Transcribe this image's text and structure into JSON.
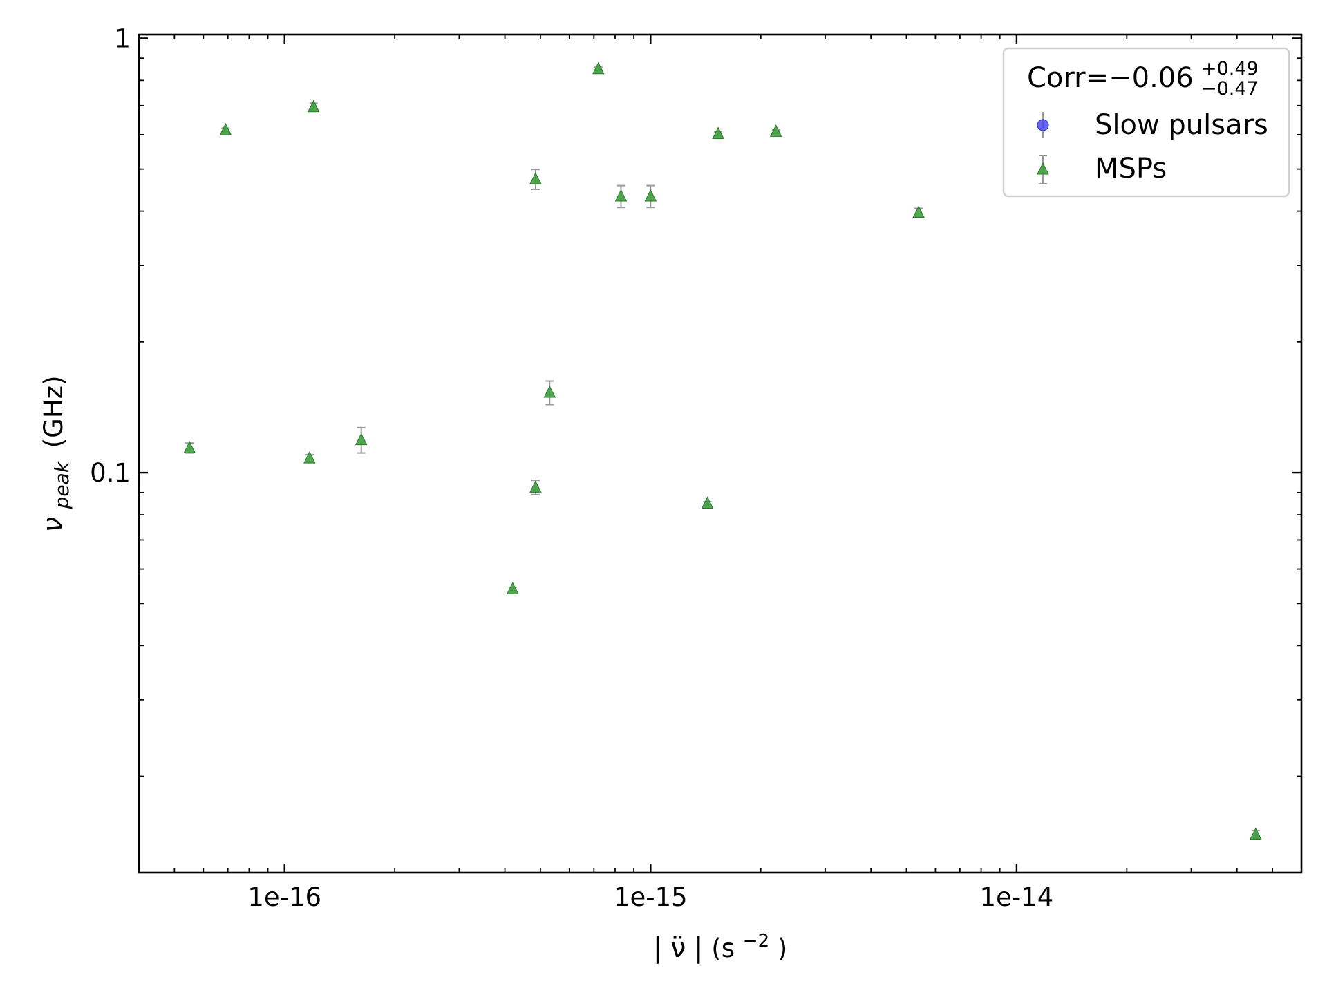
{
  "chart_data": {
    "type": "scatter",
    "title": "",
    "xlabel": {
      "abs_open": "|",
      "symbol": "ν̈",
      "abs_close": "|",
      "unit_open": "(s",
      "unit_exp": "−2",
      "unit_close": ")"
    },
    "ylabel": {
      "symbol": "ν",
      "subscript": "peak",
      "unit": "(GHz)"
    },
    "xscale": "log",
    "yscale": "log",
    "xlim": [
      4e-17,
      6e-14
    ],
    "ylim": [
      0.012,
      1.02
    ],
    "x_ticks": [
      {
        "value": 1e-16,
        "label": "1e-16"
      },
      {
        "value": 1e-15,
        "label": "1e-15"
      },
      {
        "value": 1e-14,
        "label": "1e-14"
      }
    ],
    "y_ticks": [
      {
        "value": 0.1,
        "label": "0.1"
      },
      {
        "value": 1,
        "label": "1"
      }
    ],
    "grid": false,
    "legend": {
      "position": "top-right",
      "title_prefix": "Corr=−0.06",
      "title_sup": "+0.49",
      "title_sub": "−0.47",
      "entries": [
        "Slow pulsars",
        "MSPs"
      ]
    },
    "series": [
      {
        "name": "Slow pulsars",
        "marker": "circle",
        "color": "#4a4aef",
        "points": []
      },
      {
        "name": "MSPs",
        "marker": "triangle",
        "color": "#3da03d",
        "points": [
          {
            "x": 5.5e-17,
            "y": 0.114,
            "err": 0.003
          },
          {
            "x": 6.9e-17,
            "y": 0.615,
            "err": 0.006
          },
          {
            "x": 1.17e-16,
            "y": 0.108,
            "err": 0.002
          },
          {
            "x": 1.2e-16,
            "y": 0.695,
            "err": 0.014
          },
          {
            "x": 1.62e-16,
            "y": 0.119,
            "err": 0.008
          },
          {
            "x": 4.2e-16,
            "y": 0.054,
            "err": 0.0005
          },
          {
            "x": 4.85e-16,
            "y": 0.474,
            "err": 0.025
          },
          {
            "x": 4.85e-16,
            "y": 0.0925,
            "err": 0.0035
          },
          {
            "x": 5.3e-16,
            "y": 0.153,
            "err": 0.0095
          },
          {
            "x": 7.2e-16,
            "y": 0.85,
            "err": 0.008
          },
          {
            "x": 8.3e-16,
            "y": 0.433,
            "err": 0.025
          },
          {
            "x": 1e-15,
            "y": 0.433,
            "err": 0.025
          },
          {
            "x": 1.43e-15,
            "y": 0.085,
            "err": 0.0008
          },
          {
            "x": 1.53e-15,
            "y": 0.603,
            "err": 0.006
          },
          {
            "x": 2.2e-15,
            "y": 0.61,
            "err": 0.005
          },
          {
            "x": 5.4e-15,
            "y": 0.397,
            "err": 0.009
          },
          {
            "x": 4.5e-14,
            "y": 0.0147,
            "err": 0.0003
          }
        ]
      }
    ],
    "colors": {
      "msp_fill": "#3da03d",
      "msp_edge": "#2a7a2a",
      "slow_fill": "#4a4aef",
      "errorbar": "#999999",
      "axes": "#000000",
      "legend_border": "#d0d0d0"
    }
  }
}
